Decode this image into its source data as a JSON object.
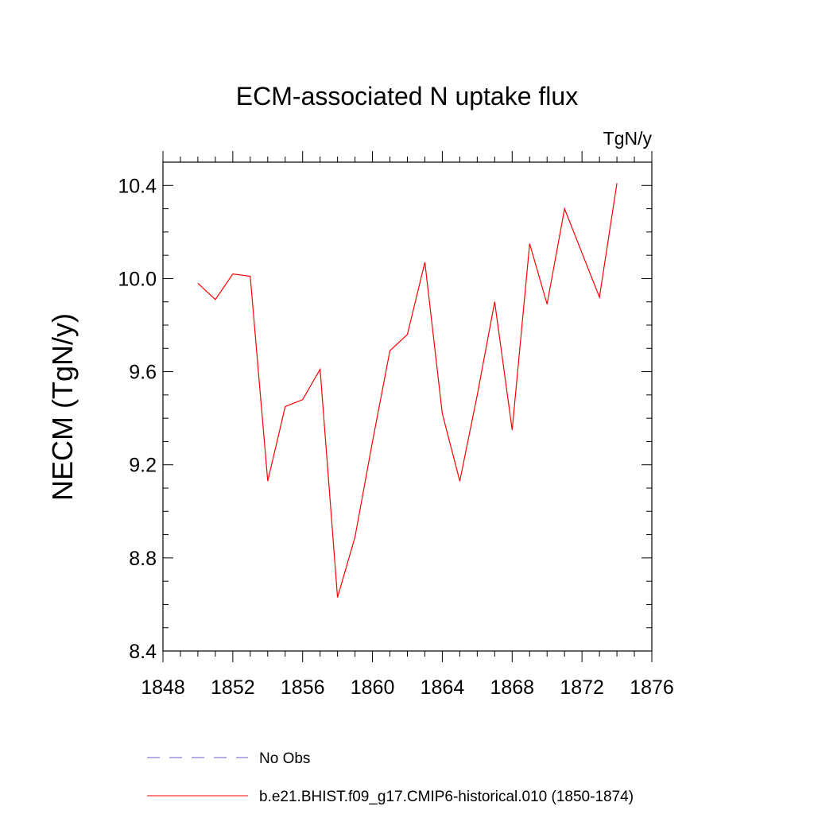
{
  "chart_data": {
    "type": "line",
    "title": "ECM-associated N uptake flux",
    "units_label": "TgN/y",
    "ylabel": "NECM  (TgN/y)",
    "xlabel": "",
    "xlim": [
      1848,
      1876
    ],
    "ylim": [
      8.4,
      10.5
    ],
    "x_ticks": [
      1848,
      1852,
      1856,
      1860,
      1864,
      1868,
      1872,
      1876
    ],
    "x_tick_labels": [
      "1848",
      "1852",
      "1856",
      "1860",
      "1864",
      "1868",
      "1872",
      "1876"
    ],
    "y_ticks": [
      8.4,
      8.8,
      9.2,
      9.6,
      10.0,
      10.4
    ],
    "y_tick_labels": [
      "8.4",
      "8.8",
      "9.2",
      "9.6",
      "10.0",
      "10.4"
    ],
    "grid": false,
    "legend_position": "bottom",
    "series": [
      {
        "name": "b.e21.BHIST.f09_g17.CMIP6-historical.010 (1850-1874)",
        "color": "#ff0000",
        "style": "solid",
        "x": [
          1850,
          1851,
          1852,
          1853,
          1854,
          1855,
          1856,
          1857,
          1858,
          1859,
          1860,
          1861,
          1862,
          1863,
          1864,
          1865,
          1866,
          1867,
          1868,
          1869,
          1870,
          1871,
          1872,
          1873,
          1874
        ],
        "y": [
          9.98,
          9.91,
          10.02,
          10.01,
          9.13,
          9.45,
          9.48,
          9.61,
          8.63,
          8.89,
          9.3,
          9.69,
          9.76,
          10.07,
          9.42,
          9.13,
          9.5,
          9.9,
          9.35,
          10.15,
          9.89,
          10.3,
          10.11,
          9.92,
          10.41
        ]
      }
    ],
    "legend": [
      {
        "label": "No Obs",
        "color": "#6a5acd",
        "style": "dashed"
      },
      {
        "label": "b.e21.BHIST.f09_g17.CMIP6-historical.010 (1850-1874)",
        "color": "#ff0000",
        "style": "solid"
      }
    ]
  }
}
